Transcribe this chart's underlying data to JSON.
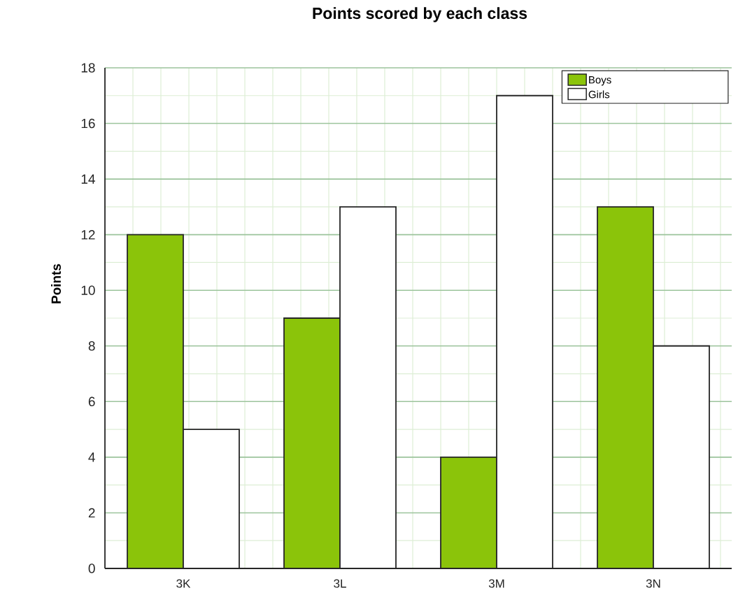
{
  "chart_data": {
    "type": "bar",
    "title": "Points scored by each class",
    "ylabel": "Points",
    "categories": [
      "3K",
      "3L",
      "3M",
      "3N"
    ],
    "series": [
      {
        "name": "Boys",
        "color": "#8bc40a",
        "values": [
          12,
          9,
          4,
          13
        ]
      },
      {
        "name": "Girls",
        "color": "#ffffff",
        "values": [
          5,
          13,
          17,
          8
        ]
      }
    ],
    "ylim": [
      0,
      18
    ],
    "yticks": [
      0,
      2,
      4,
      6,
      8,
      10,
      12,
      14,
      16,
      18
    ],
    "grid": true,
    "legend": "top right"
  }
}
